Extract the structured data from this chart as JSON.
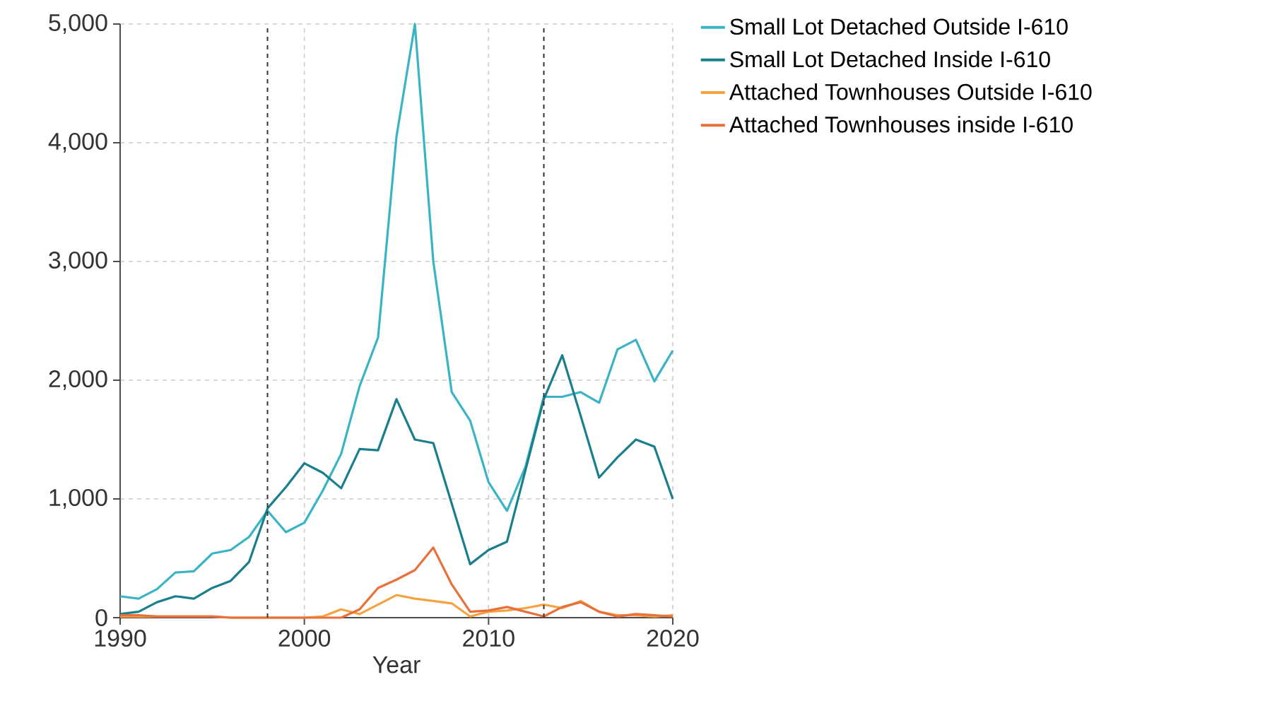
{
  "chart_data": {
    "type": "line",
    "xlabel": "Year",
    "x": [
      1990,
      1991,
      1992,
      1993,
      1994,
      1995,
      1996,
      1997,
      1998,
      1999,
      2000,
      2001,
      2002,
      2003,
      2004,
      2005,
      2006,
      2007,
      2008,
      2009,
      2010,
      2011,
      2012,
      2013,
      2014,
      2015,
      2016,
      2017,
      2018,
      2019,
      2020
    ],
    "series": [
      {
        "name": "Small Lot Detached Outside I-610",
        "color": "#3ab4c4",
        "values": [
          180,
          160,
          240,
          380,
          390,
          540,
          570,
          680,
          900,
          720,
          800,
          1070,
          1380,
          1950,
          2360,
          4050,
          5000,
          3000,
          1900,
          1660,
          1140,
          900,
          1270,
          1860,
          1860,
          1900,
          1810,
          2260,
          2340,
          1990,
          2250
        ]
      },
      {
        "name": "Small Lot Detached Inside I-610",
        "color": "#1a7f8a",
        "values": [
          30,
          50,
          130,
          180,
          160,
          250,
          310,
          470,
          920,
          1100,
          1300,
          1220,
          1090,
          1420,
          1410,
          1840,
          1500,
          1470,
          960,
          450,
          570,
          640,
          1240,
          1840,
          2210,
          1700,
          1180,
          1350,
          1500,
          1440,
          1000
        ]
      },
      {
        "name": "Attached Townhouses Outside I-610",
        "color": "#f4a340",
        "values": [
          10,
          10,
          10,
          10,
          10,
          10,
          0,
          0,
          0,
          0,
          0,
          10,
          70,
          30,
          110,
          190,
          160,
          140,
          120,
          10,
          50,
          60,
          80,
          110,
          80,
          140,
          50,
          20,
          20,
          10,
          20
        ]
      },
      {
        "name": "Attached Townhouses inside I-610",
        "color": "#e8703a",
        "values": [
          20,
          20,
          10,
          10,
          10,
          10,
          0,
          0,
          0,
          0,
          0,
          0,
          0,
          70,
          250,
          320,
          400,
          590,
          280,
          50,
          60,
          90,
          50,
          10,
          90,
          130,
          50,
          10,
          30,
          20,
          10
        ]
      }
    ],
    "xlim": [
      1990,
      2020
    ],
    "ylim": [
      0,
      5000
    ],
    "xticks": [
      1990,
      2000,
      2010,
      2020
    ],
    "yticks": [
      {
        "value": 0,
        "label": "0"
      },
      {
        "value": 1000,
        "label": "1,000"
      },
      {
        "value": 2000,
        "label": "2,000"
      },
      {
        "value": 3000,
        "label": "3,000"
      },
      {
        "value": 4000,
        "label": "4,000"
      },
      {
        "value": 5000,
        "label": "5,000"
      }
    ],
    "ref_lines": [
      {
        "axis": "x",
        "value": 1998,
        "color": "#333333",
        "line_style": "dashed"
      },
      {
        "axis": "x",
        "value": 2013,
        "color": "#333333",
        "line_style": "dashed"
      }
    ],
    "grid": true,
    "legend": "top right",
    "line_style": "solid",
    "marker": "none"
  }
}
